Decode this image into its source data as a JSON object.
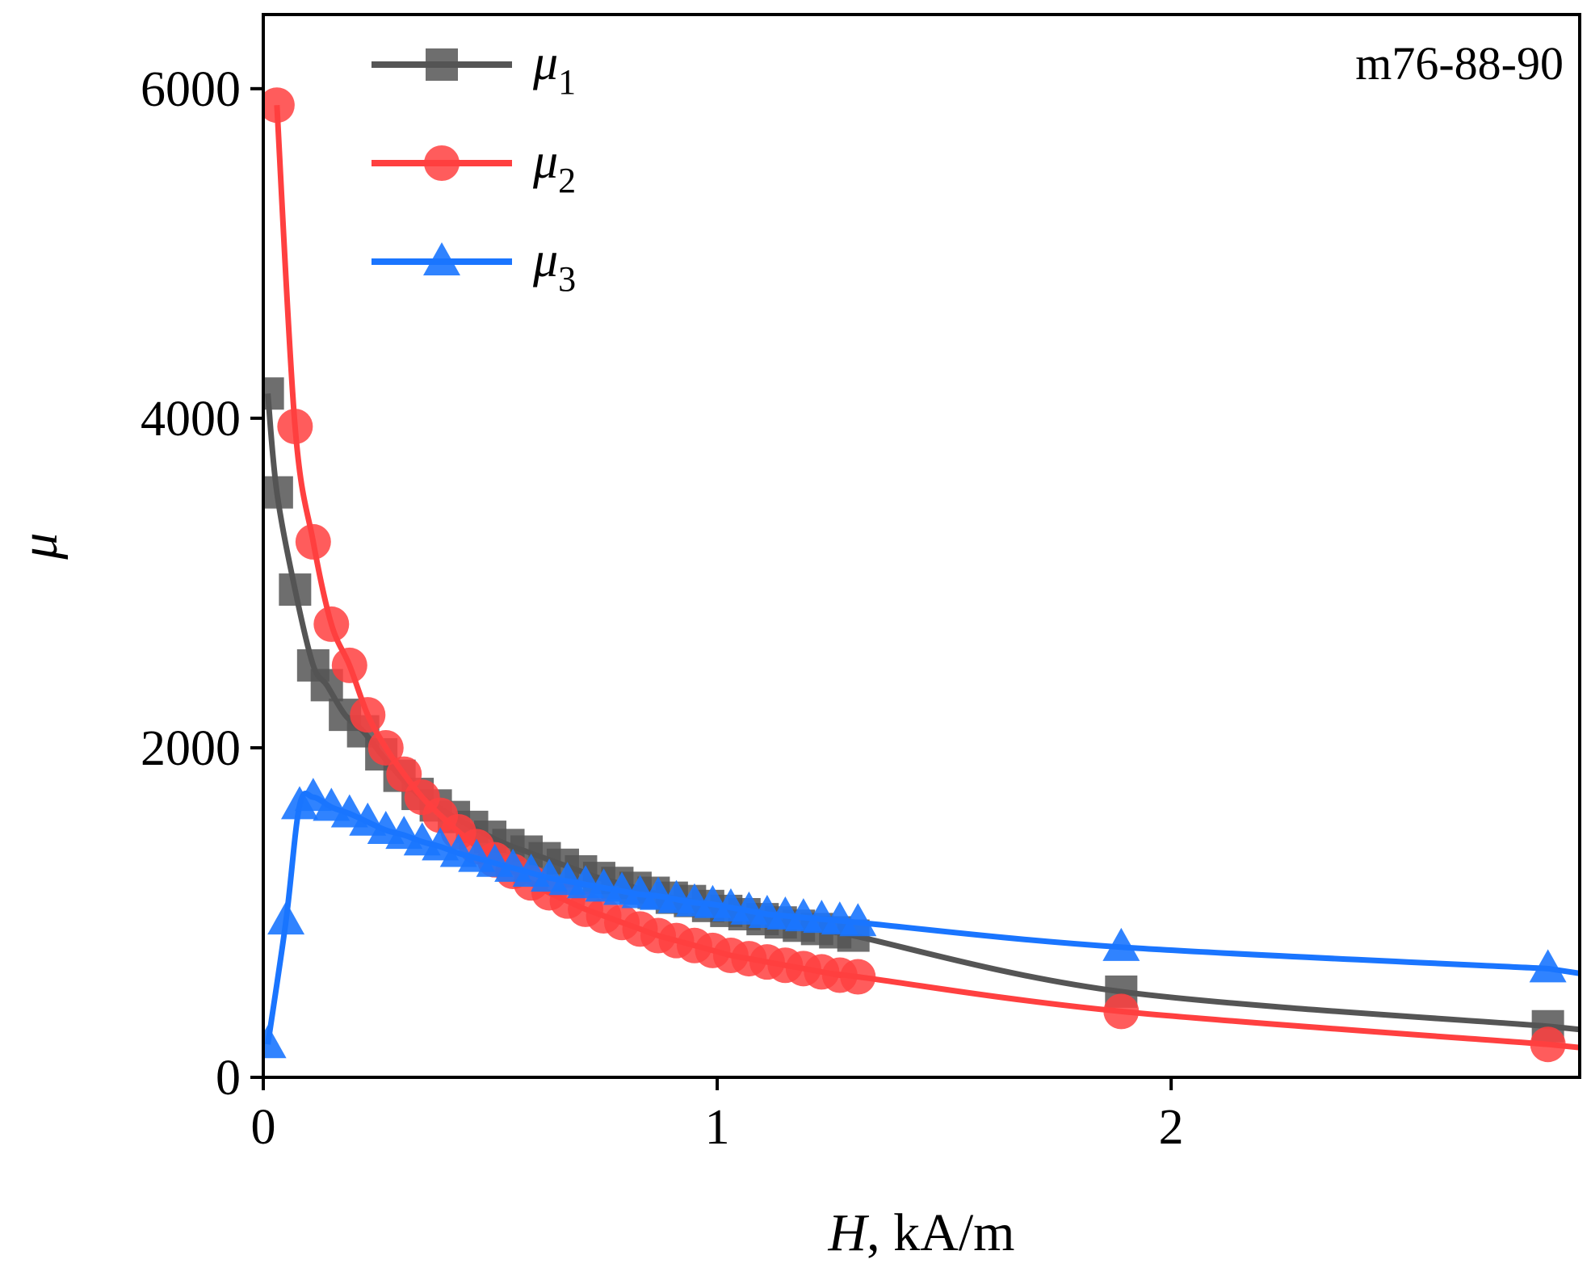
{
  "chart_data": {
    "type": "line",
    "title": "",
    "annotation": "m76-88-90",
    "xlabel": {
      "var": "H",
      "rest": ", kA/m"
    },
    "ylabel": "μ",
    "xlim": [
      0,
      2.9
    ],
    "ylim": [
      0,
      6450
    ],
    "xticks": [
      0,
      1,
      2
    ],
    "yticks": [
      0,
      2000,
      4000,
      6000
    ],
    "legend_position": "top-left",
    "series": [
      {
        "name": "μ1",
        "legend_sym": "μ",
        "legend_sub": "1",
        "color": "#555555",
        "marker": "square",
        "x": [
          0.01,
          0.03,
          0.07,
          0.11,
          0.14,
          0.18,
          0.22,
          0.26,
          0.3,
          0.34,
          0.38,
          0.42,
          0.46,
          0.5,
          0.54,
          0.58,
          0.62,
          0.66,
          0.7,
          0.74,
          0.78,
          0.82,
          0.86,
          0.9,
          0.94,
          0.98,
          1.02,
          1.06,
          1.1,
          1.14,
          1.18,
          1.22,
          1.26,
          1.3,
          1.89,
          2.83
        ],
        "y": [
          4150,
          3550,
          2960,
          2500,
          2380,
          2200,
          2100,
          1960,
          1830,
          1720,
          1650,
          1580,
          1520,
          1460,
          1410,
          1370,
          1330,
          1290,
          1250,
          1210,
          1180,
          1150,
          1120,
          1090,
          1070,
          1040,
          1010,
          990,
          960,
          940,
          920,
          900,
          880,
          860,
          520,
          310
        ]
      },
      {
        "name": "μ2",
        "legend_sym": "μ",
        "legend_sub": "2",
        "color": "#ff4040",
        "marker": "circle",
        "x": [
          0.03,
          0.07,
          0.11,
          0.15,
          0.19,
          0.23,
          0.27,
          0.31,
          0.35,
          0.39,
          0.43,
          0.47,
          0.51,
          0.55,
          0.59,
          0.63,
          0.67,
          0.71,
          0.75,
          0.79,
          0.83,
          0.87,
          0.91,
          0.95,
          0.99,
          1.03,
          1.07,
          1.11,
          1.15,
          1.19,
          1.23,
          1.27,
          1.31,
          1.89,
          2.83
        ],
        "y": [
          5900,
          3950,
          3250,
          2750,
          2500,
          2200,
          2000,
          1840,
          1700,
          1590,
          1490,
          1400,
          1320,
          1250,
          1180,
          1120,
          1070,
          1020,
          980,
          940,
          900,
          860,
          830,
          800,
          770,
          740,
          720,
          700,
          680,
          660,
          640,
          620,
          610,
          400,
          200
        ]
      },
      {
        "name": "μ3",
        "legend_sym": "μ",
        "legend_sub": "3",
        "color": "#1a75ff",
        "marker": "triangle",
        "x": [
          0.01,
          0.05,
          0.08,
          0.11,
          0.15,
          0.19,
          0.23,
          0.27,
          0.31,
          0.35,
          0.39,
          0.43,
          0.47,
          0.51,
          0.55,
          0.59,
          0.63,
          0.67,
          0.71,
          0.75,
          0.79,
          0.83,
          0.87,
          0.91,
          0.95,
          0.99,
          1.03,
          1.07,
          1.11,
          1.15,
          1.19,
          1.23,
          1.27,
          1.31,
          1.89,
          2.83
        ],
        "y": [
          200,
          950,
          1650,
          1700,
          1640,
          1600,
          1550,
          1500,
          1470,
          1430,
          1400,
          1360,
          1330,
          1300,
          1270,
          1240,
          1210,
          1190,
          1170,
          1150,
          1130,
          1110,
          1100,
          1080,
          1060,
          1050,
          1030,
          1010,
          990,
          980,
          970,
          960,
          950,
          940,
          790,
          660
        ]
      }
    ]
  }
}
